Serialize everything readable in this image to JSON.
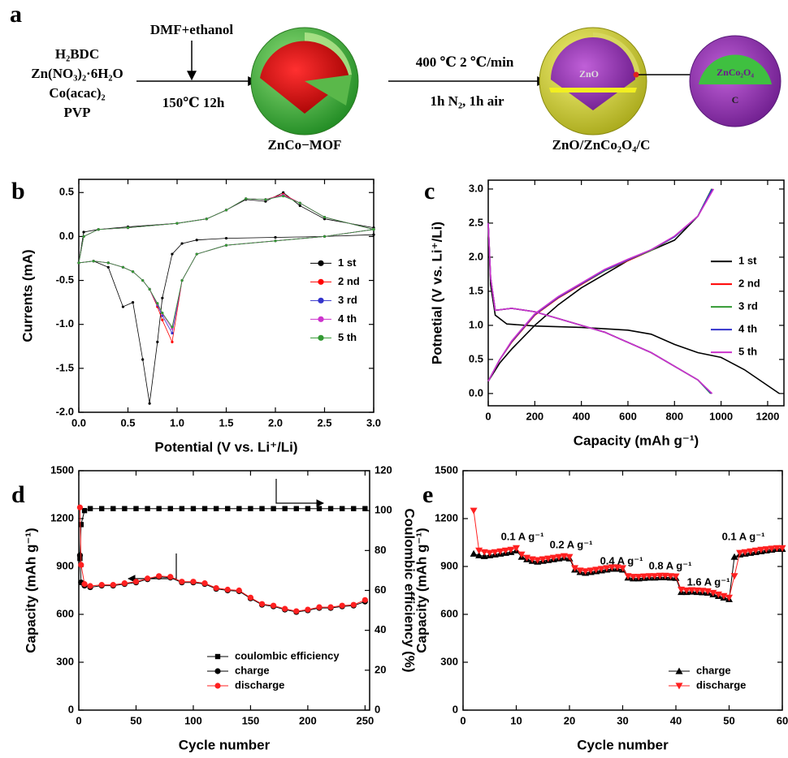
{
  "scheme": {
    "panel": "a",
    "reagents": [
      "H₂BDC",
      "Zn(NO₃)₂·6H₂O",
      "Co(acac)₂",
      "PVP"
    ],
    "solvent": "DMF+ethanol",
    "step1": "150℃ 12h",
    "mof": "ZnCo−MOF",
    "step2_top": "400 ℃ 2 ℃/min",
    "step2_bottom": "1h N₂, 1h air",
    "product": "ZnO/ZnCo₂O₄/C",
    "core": "ZnO",
    "inset_shell": "ZnCo₂O₄",
    "inset_core": "C"
  },
  "chart_data": [
    {
      "type": "line",
      "panel": "b",
      "x_label": "Potential (V vs. Li⁺/Li)",
      "y_label": "Currents (mA)",
      "xlim": [
        0,
        3
      ],
      "ylim": [
        -2.0,
        0.65
      ],
      "xticks": [
        {
          "value": 0,
          "label": "0.0"
        },
        0.5,
        {
          "value": 1,
          "label": "1.0"
        },
        1.5,
        {
          "value": 2,
          "label": "2.0"
        },
        2.5,
        {
          "value": 3,
          "label": "3.0"
        }
      ],
      "yticks": [
        {
          "value": -2,
          "label": "-2.0"
        },
        -1.5,
        {
          "value": -1,
          "label": "-1.0"
        },
        -0.5,
        {
          "value": 0,
          "label": "0.0"
        },
        0.5
      ],
      "legend": "center right",
      "x": [
        3.0,
        2.5,
        2.0,
        1.5,
        1.2,
        1.05,
        0.95,
        0.85,
        0.8,
        0.72,
        0.65,
        0.55,
        0.45,
        0.3,
        0.15,
        0.0,
        0.05,
        0.2,
        0.5,
        1.0,
        1.3,
        1.5,
        1.7,
        1.9,
        2.08,
        2.25,
        2.5,
        3.0
      ],
      "series": [
        {
          "name": "1 st",
          "color": "#000000",
          "marker": "dot",
          "values": [
            0.02,
            0.0,
            -0.01,
            -0.02,
            -0.04,
            -0.08,
            -0.2,
            -0.7,
            -1.2,
            -1.9,
            -1.4,
            -0.75,
            -0.8,
            -0.35,
            -0.28,
            -0.3,
            0.05,
            0.08,
            0.11,
            0.15,
            0.2,
            0.3,
            0.42,
            0.4,
            0.5,
            0.35,
            0.2,
            0.1
          ]
        },
        {
          "name": "2 nd",
          "color": "#ff0000",
          "marker": "dot",
          "values": [
            0.08,
            0.0,
            -0.05,
            -0.1,
            -0.2,
            -0.5,
            -1.2,
            -0.95,
            -0.8,
            -0.6,
            -0.5,
            -0.4,
            -0.35,
            -0.3,
            -0.28,
            -0.3,
            0.0,
            0.08,
            0.1,
            0.15,
            0.2,
            0.3,
            0.43,
            0.42,
            0.48,
            0.38,
            0.22,
            0.08
          ]
        },
        {
          "name": "3 rd",
          "color": "#3333cc",
          "marker": "dot",
          "values": [
            0.08,
            0.0,
            -0.05,
            -0.1,
            -0.2,
            -0.5,
            -1.1,
            -0.9,
            -0.78,
            -0.6,
            -0.5,
            -0.4,
            -0.35,
            -0.3,
            -0.28,
            -0.3,
            0.0,
            0.08,
            0.1,
            0.15,
            0.2,
            0.3,
            0.43,
            0.42,
            0.47,
            0.38,
            0.22,
            0.08
          ]
        },
        {
          "name": "4 th",
          "color": "#cc33cc",
          "marker": "dot",
          "values": [
            0.08,
            0.0,
            -0.05,
            -0.1,
            -0.2,
            -0.5,
            -1.05,
            -0.88,
            -0.77,
            -0.6,
            -0.5,
            -0.4,
            -0.35,
            -0.3,
            -0.28,
            -0.3,
            0.0,
            0.08,
            0.1,
            0.15,
            0.2,
            0.3,
            0.43,
            0.42,
            0.47,
            0.38,
            0.22,
            0.08
          ]
        },
        {
          "name": "5 th",
          "color": "#339933",
          "marker": "dot",
          "values": [
            0.08,
            0.0,
            -0.05,
            -0.1,
            -0.2,
            -0.5,
            -1.03,
            -0.87,
            -0.76,
            -0.6,
            -0.5,
            -0.4,
            -0.35,
            -0.3,
            -0.28,
            -0.3,
            0.0,
            0.08,
            0.1,
            0.15,
            0.2,
            0.3,
            0.43,
            0.42,
            0.46,
            0.38,
            0.22,
            0.08
          ]
        }
      ]
    },
    {
      "type": "line",
      "panel": "c",
      "x_label": "Capacity (mAh g⁻¹)",
      "y_label": "Potnetial (V vs. Li⁺/Li)",
      "xlim": [
        0,
        1270
      ],
      "ylim": [
        -0.18,
        3.13
      ],
      "xticks": [
        0,
        200,
        400,
        600,
        800,
        1000,
        1200
      ],
      "yticks": [
        {
          "value": 0,
          "label": "0.0"
        },
        0.5,
        {
          "value": 1,
          "label": "1.0"
        },
        1.5,
        {
          "value": 2,
          "label": "2.0"
        },
        2.5,
        {
          "value": 3,
          "label": "3.0"
        }
      ],
      "legend": "center right",
      "series": [
        {
          "name": "1 st",
          "color": "#000000",
          "marker": "none",
          "x": [
            0,
            10,
            30,
            80,
            200,
            400,
            600,
            700,
            800,
            900,
            1000,
            1100,
            1250,
            null,
            0,
            50,
            100,
            200,
            300,
            400,
            500,
            600,
            700,
            800,
            900,
            960
          ],
          "values": [
            2.5,
            1.6,
            1.15,
            1.02,
            0.99,
            0.97,
            0.93,
            0.87,
            0.72,
            0.6,
            0.53,
            0.35,
            0.0,
            null,
            0.18,
            0.45,
            0.65,
            1.0,
            1.3,
            1.55,
            1.75,
            1.95,
            2.1,
            2.25,
            2.6,
            3.0
          ]
        },
        {
          "name": "2 nd",
          "color": "#ff0000",
          "marker": "none",
          "x": [
            0,
            10,
            30,
            100,
            200,
            300,
            400,
            500,
            600,
            700,
            800,
            900,
            960,
            null,
            0,
            50,
            100,
            200,
            300,
            400,
            500,
            600,
            700,
            800,
            900,
            965
          ],
          "values": [
            2.5,
            1.7,
            1.22,
            1.25,
            1.2,
            1.1,
            1.0,
            0.9,
            0.75,
            0.6,
            0.4,
            0.2,
            0.0,
            null,
            0.18,
            0.5,
            0.75,
            1.15,
            1.4,
            1.6,
            1.8,
            1.95,
            2.1,
            2.3,
            2.6,
            3.0
          ]
        },
        {
          "name": "3 rd",
          "color": "#339933",
          "marker": "none",
          "x": [
            0,
            10,
            30,
            100,
            200,
            300,
            400,
            500,
            600,
            700,
            800,
            900,
            955,
            null,
            0,
            50,
            100,
            200,
            300,
            400,
            500,
            600,
            700,
            800,
            900,
            960
          ],
          "values": [
            2.5,
            1.7,
            1.22,
            1.25,
            1.2,
            1.1,
            1.0,
            0.9,
            0.75,
            0.6,
            0.4,
            0.2,
            0.0,
            null,
            0.18,
            0.5,
            0.76,
            1.16,
            1.41,
            1.61,
            1.8,
            1.96,
            2.1,
            2.3,
            2.6,
            3.0
          ]
        },
        {
          "name": "4 th",
          "color": "#3333cc",
          "marker": "none",
          "x": [
            0,
            10,
            30,
            100,
            200,
            300,
            400,
            500,
            600,
            700,
            800,
            900,
            958,
            null,
            0,
            50,
            100,
            200,
            300,
            400,
            500,
            600,
            700,
            800,
            900,
            962
          ],
          "values": [
            2.5,
            1.7,
            1.22,
            1.25,
            1.2,
            1.1,
            1.0,
            0.9,
            0.75,
            0.6,
            0.4,
            0.2,
            0.0,
            null,
            0.18,
            0.5,
            0.76,
            1.16,
            1.41,
            1.61,
            1.81,
            1.96,
            2.11,
            2.3,
            2.6,
            3.0
          ]
        },
        {
          "name": "5 th",
          "color": "#cc33cc",
          "marker": "none",
          "x": [
            0,
            10,
            30,
            100,
            200,
            300,
            400,
            500,
            600,
            700,
            800,
            900,
            962,
            null,
            0,
            50,
            100,
            200,
            300,
            400,
            500,
            600,
            700,
            800,
            900,
            968
          ],
          "values": [
            2.5,
            1.7,
            1.22,
            1.25,
            1.2,
            1.1,
            1.0,
            0.9,
            0.75,
            0.6,
            0.4,
            0.2,
            0.0,
            null,
            0.18,
            0.5,
            0.77,
            1.17,
            1.42,
            1.62,
            1.82,
            1.97,
            2.11,
            2.31,
            2.6,
            3.0
          ]
        }
      ]
    },
    {
      "type": "line",
      "panel": "d",
      "x_label": "Cycle number",
      "y_label": "Capacity (mAh g⁻¹)",
      "y2_label": "Coulombic efficiency (%)",
      "xlim": [
        0,
        254
      ],
      "ylim": [
        0,
        1500
      ],
      "y2lim": [
        0,
        120
      ],
      "xticks": [
        0,
        50,
        100,
        150,
        200,
        250
      ],
      "yticks": [
        0,
        300,
        600,
        900,
        1200,
        1500
      ],
      "y2ticks": [
        0,
        20,
        40,
        60,
        80,
        100,
        120
      ],
      "legend": "lower right",
      "x": [
        1,
        2,
        5,
        10,
        20,
        30,
        40,
        50,
        60,
        70,
        80,
        90,
        100,
        110,
        120,
        130,
        140,
        150,
        160,
        170,
        180,
        190,
        200,
        210,
        220,
        230,
        240,
        250
      ],
      "series": [
        {
          "name": "coulombic efficiency",
          "color": "#000000",
          "marker": "square",
          "axis": "y2",
          "values": [
            76,
            93,
            100,
            101,
            101,
            101,
            101,
            101,
            101,
            101,
            101,
            101,
            101,
            101,
            101,
            101,
            101,
            101,
            101,
            101,
            101,
            101,
            101,
            101,
            101,
            101,
            101,
            101
          ]
        },
        {
          "name": "charge",
          "color": "#000000",
          "marker": "circle",
          "values": [
            970,
            800,
            780,
            770,
            780,
            780,
            790,
            800,
            820,
            835,
            830,
            800,
            800,
            790,
            760,
            750,
            745,
            700,
            660,
            650,
            630,
            615,
            625,
            640,
            640,
            650,
            655,
            680
          ]
        },
        {
          "name": "discharge",
          "color": "#ff2020",
          "marker": "circle",
          "values": [
            1270,
            910,
            790,
            778,
            785,
            785,
            795,
            805,
            825,
            840,
            835,
            805,
            805,
            795,
            765,
            755,
            750,
            705,
            665,
            655,
            635,
            620,
            630,
            645,
            645,
            655,
            660,
            690
          ]
        }
      ]
    },
    {
      "type": "line",
      "panel": "e",
      "x_label": "Cycle number",
      "y_label": "Capacity (mAh g⁻¹)",
      "xlim": [
        0,
        60
      ],
      "ylim": [
        0,
        1500
      ],
      "xticks": [
        0,
        10,
        20,
        30,
        40,
        50,
        60
      ],
      "yticks": [
        0,
        300,
        600,
        900,
        1200,
        1500
      ],
      "legend": "lower right",
      "annotations": [
        "0.1 A g⁻¹",
        "0.2 A g⁻¹",
        "0.4 A g⁻¹",
        "0.8 A g⁻¹",
        "1.6 A g⁻¹",
        "0.1 A g⁻¹"
      ],
      "x": [
        2,
        3,
        4,
        5,
        6,
        7,
        8,
        9,
        10,
        11,
        12,
        13,
        14,
        15,
        16,
        17,
        18,
        19,
        20,
        21,
        22,
        23,
        24,
        25,
        26,
        27,
        28,
        29,
        30,
        31,
        32,
        33,
        34,
        35,
        36,
        37,
        38,
        39,
        40,
        41,
        42,
        43,
        44,
        45,
        46,
        47,
        48,
        49,
        50,
        51,
        52,
        53,
        54,
        55,
        56,
        57,
        58,
        59,
        60
      ],
      "series": [
        {
          "name": "charge",
          "color": "#000000",
          "marker": "triangle-up",
          "values": [
            980,
            970,
            965,
            970,
            975,
            980,
            985,
            990,
            1000,
            960,
            945,
            935,
            930,
            935,
            940,
            945,
            950,
            955,
            950,
            880,
            865,
            860,
            865,
            870,
            875,
            880,
            885,
            885,
            880,
            830,
            825,
            825,
            828,
            830,
            830,
            832,
            832,
            830,
            828,
            740,
            740,
            742,
            740,
            738,
            735,
            725,
            715,
            705,
            695,
            960,
            975,
            980,
            985,
            990,
            995,
            1000,
            1005,
            1010,
            1010
          ]
        },
        {
          "name": "discharge",
          "color": "#ff2020",
          "marker": "triangle-down",
          "values": [
            1250,
            1000,
            990,
            985,
            990,
            995,
            1000,
            1005,
            1015,
            975,
            955,
            945,
            940,
            945,
            950,
            955,
            960,
            965,
            960,
            890,
            875,
            870,
            875,
            880,
            885,
            890,
            895,
            895,
            890,
            840,
            835,
            835,
            838,
            840,
            840,
            842,
            842,
            840,
            838,
            755,
            750,
            752,
            750,
            748,
            745,
            735,
            725,
            715,
            705,
            840,
            985,
            990,
            995,
            1000,
            1005,
            1008,
            1012,
            1015,
            1015
          ]
        }
      ]
    }
  ]
}
